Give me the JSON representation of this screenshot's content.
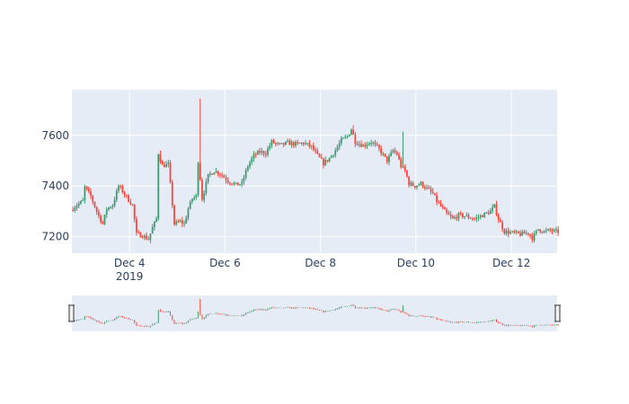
{
  "chart_data": {
    "type": "candlestick",
    "title": "",
    "xlabel": "",
    "ylabel": "",
    "x_range": [
      "2019-12-02T19:00",
      "2019-12-12T23:00"
    ],
    "ylim": [
      7135,
      7780
    ],
    "yticks": [
      7200,
      7400,
      7600
    ],
    "xticks": [
      {
        "date": "2019-12-04",
        "label": "Dec 4",
        "sublabel": "2019"
      },
      {
        "date": "2019-12-06",
        "label": "Dec 6",
        "sublabel": ""
      },
      {
        "date": "2019-12-08",
        "label": "Dec 8",
        "sublabel": ""
      },
      {
        "date": "2019-12-10",
        "label": "Dec 10",
        "sublabel": ""
      },
      {
        "date": "2019-12-12",
        "label": "Dec 12",
        "sublabel": ""
      }
    ],
    "candle_interval_hours": 1,
    "start": "2019-12-02T19:00",
    "colors": {
      "increasing": "#3d9970",
      "decreasing": "#ff4136",
      "plot_bg": "#e5ecf6",
      "grid": "#ffffff",
      "axis_text": "#2a3f5f"
    },
    "close_path": [
      [
        "2019-12-02T19:00",
        7305
      ],
      [
        "2019-12-02T22:00",
        7325
      ],
      [
        "2019-12-03T01:00",
        7340
      ],
      [
        "2019-12-03T02:00",
        7395
      ],
      [
        "2019-12-03T05:00",
        7360
      ],
      [
        "2019-12-03T08:00",
        7300
      ],
      [
        "2019-12-03T11:00",
        7250
      ],
      [
        "2019-12-03T13:00",
        7310
      ],
      [
        "2019-12-03T16:00",
        7325
      ],
      [
        "2019-12-03T19:00",
        7400
      ],
      [
        "2019-12-03T21:00",
        7380
      ],
      [
        "2019-12-04T00:00",
        7345
      ],
      [
        "2019-12-04T02:00",
        7325
      ],
      [
        "2019-12-04T04:00",
        7210
      ],
      [
        "2019-12-04T07:00",
        7205
      ],
      [
        "2019-12-04T10:00",
        7190
      ],
      [
        "2019-12-04T12:00",
        7235
      ],
      [
        "2019-12-04T14:00",
        7270
      ],
      [
        "2019-12-04T15:00",
        7530
      ],
      [
        "2019-12-04T17:00",
        7480
      ],
      [
        "2019-12-04T20:00",
        7485
      ],
      [
        "2019-12-04T23:00",
        7250
      ],
      [
        "2019-12-05T02:00",
        7260
      ],
      [
        "2019-12-05T04:00",
        7250
      ],
      [
        "2019-12-05T06:00",
        7310
      ],
      [
        "2019-12-05T08:00",
        7350
      ],
      [
        "2019-12-05T10:00",
        7360
      ],
      [
        "2019-12-05T11:00",
        7500
      ],
      [
        "2019-12-05T12:00",
        7430
      ],
      [
        "2019-12-05T13:00",
        7350
      ],
      [
        "2019-12-05T16:00",
        7440
      ],
      [
        "2019-12-05T19:00",
        7460
      ],
      [
        "2019-12-05T22:00",
        7450
      ],
      [
        "2019-12-06T02:00",
        7420
      ],
      [
        "2019-12-06T06:00",
        7405
      ],
      [
        "2019-12-06T09:00",
        7410
      ],
      [
        "2019-12-06T12:00",
        7480
      ],
      [
        "2019-12-06T15:00",
        7520
      ],
      [
        "2019-12-06T18:00",
        7535
      ],
      [
        "2019-12-06T21:00",
        7530
      ],
      [
        "2019-12-07T00:00",
        7575
      ],
      [
        "2019-12-07T04:00",
        7560
      ],
      [
        "2019-12-07T08:00",
        7570
      ],
      [
        "2019-12-07T12:00",
        7565
      ],
      [
        "2019-12-07T16:00",
        7570
      ],
      [
        "2019-12-07T20:00",
        7555
      ],
      [
        "2019-12-07T23:00",
        7520
      ],
      [
        "2019-12-08T02:00",
        7490
      ],
      [
        "2019-12-08T05:00",
        7510
      ],
      [
        "2019-12-08T08:00",
        7540
      ],
      [
        "2019-12-08T11:00",
        7580
      ],
      [
        "2019-12-08T14:00",
        7595
      ],
      [
        "2019-12-08T16:00",
        7625
      ],
      [
        "2019-12-08T18:00",
        7575
      ],
      [
        "2019-12-08T22:00",
        7560
      ],
      [
        "2019-12-09T02:00",
        7575
      ],
      [
        "2019-12-09T06:00",
        7545
      ],
      [
        "2019-12-09T10:00",
        7500
      ],
      [
        "2019-12-09T13:00",
        7540
      ],
      [
        "2019-12-09T15:00",
        7525
      ],
      [
        "2019-12-09T17:00",
        7480
      ],
      [
        "2019-12-09T19:00",
        7460
      ],
      [
        "2019-12-09T21:00",
        7410
      ],
      [
        "2019-12-10T00:00",
        7400
      ],
      [
        "2019-12-10T03:00",
        7410
      ],
      [
        "2019-12-10T06:00",
        7390
      ],
      [
        "2019-12-10T09:00",
        7370
      ],
      [
        "2019-12-10T11:00",
        7340
      ],
      [
        "2019-12-10T13:00",
        7320
      ],
      [
        "2019-12-10T16:00",
        7290
      ],
      [
        "2019-12-10T19:00",
        7270
      ],
      [
        "2019-12-10T22:00",
        7285
      ],
      [
        "2019-12-11T02:00",
        7280
      ],
      [
        "2019-12-11T06:00",
        7270
      ],
      [
        "2019-12-11T10:00",
        7285
      ],
      [
        "2019-12-11T14:00",
        7300
      ],
      [
        "2019-12-11T16:00",
        7320
      ],
      [
        "2019-12-11T18:00",
        7270
      ],
      [
        "2019-12-11T21:00",
        7220
      ],
      [
        "2019-12-12T01:00",
        7215
      ],
      [
        "2019-12-12T05:00",
        7210
      ],
      [
        "2019-12-12T09:00",
        7215
      ],
      [
        "2019-12-12T11:00",
        7195
      ],
      [
        "2019-12-12T14:00",
        7230
      ],
      [
        "2019-12-12T17:00",
        7220
      ],
      [
        "2019-12-12T20:00",
        7225
      ],
      [
        "2019-12-12T23:00",
        7220
      ]
    ],
    "spikes": [
      {
        "time": "2019-12-05T11:00",
        "high": 7745
      },
      {
        "time": "2019-12-09T17:00",
        "high": 7615
      },
      {
        "time": "2019-12-04T15:00",
        "high": 7540
      },
      {
        "time": "2019-12-08T16:00",
        "high": 7640
      }
    ],
    "rangeslider": {
      "visible": true,
      "handles": [
        "left",
        "right"
      ]
    }
  }
}
